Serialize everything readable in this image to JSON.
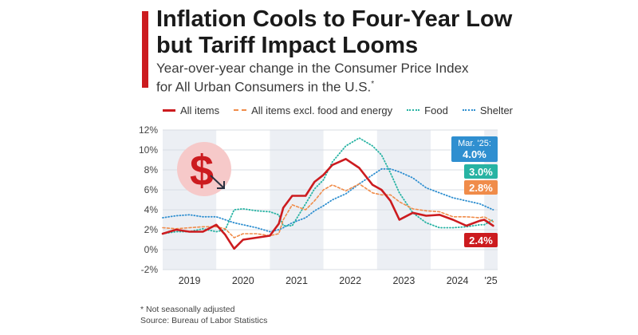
{
  "header": {
    "title_line1": "Inflation Cools to Four-Year Low",
    "title_line2": "but Tariff Impact Looms",
    "subtitle_line1": "Year-over-year change in the Consumer Price Index",
    "subtitle_line2": "for All Urban Consumers in the U.S.",
    "subtitle_mark": "*"
  },
  "footer": {
    "note": "* Not seasonally adjusted",
    "source": "Source: Bureau of Labor Statistics"
  },
  "colors": {
    "accent": "#cc1b1f",
    "all_items": "#cc1b1f",
    "core": "#f08c4a",
    "food": "#27b3a3",
    "shelter": "#2f8fd0",
    "band": "#eceff4",
    "grid": "#d9dde3"
  },
  "icon": "dollar-down-icon",
  "chart_data": {
    "type": "line",
    "title": "Inflation Cools to Four-Year Low but Tariff Impact Looms",
    "subtitle": "Year-over-year change in the Consumer Price Index for All Urban Consumers in the U.S.*",
    "xlabel": "",
    "ylabel": "",
    "ylim": [
      -2,
      12
    ],
    "yticks": [
      "12%",
      "10%",
      "8%",
      "6%",
      "4%",
      "2%",
      "0%",
      "-2%"
    ],
    "ytick_values": [
      12,
      10,
      8,
      6,
      4,
      2,
      0,
      -2
    ],
    "xticks": [
      "2019",
      "2020",
      "2021",
      "2022",
      "2023",
      "2024",
      "'25"
    ],
    "xlim": [
      "2019-01",
      "2025-03"
    ],
    "grid": true,
    "legend_position": "top",
    "x": [
      "2019-01",
      "2019-04",
      "2019-07",
      "2019-10",
      "2020-01",
      "2020-03",
      "2020-05",
      "2020-07",
      "2020-10",
      "2021-01",
      "2021-03",
      "2021-04",
      "2021-06",
      "2021-09",
      "2021-11",
      "2022-01",
      "2022-03",
      "2022-06",
      "2022-09",
      "2022-12",
      "2023-02",
      "2023-04",
      "2023-06",
      "2023-09",
      "2023-12",
      "2024-03",
      "2024-06",
      "2024-09",
      "2024-12",
      "2025-01",
      "2025-03"
    ],
    "series": [
      {
        "name": "All items",
        "key": "all_items",
        "style": "solid",
        "values": [
          1.6,
          2.0,
          1.8,
          1.8,
          2.5,
          1.5,
          0.1,
          1.0,
          1.2,
          1.4,
          2.6,
          4.2,
          5.4,
          5.4,
          6.8,
          7.5,
          8.5,
          9.1,
          8.2,
          6.5,
          6.0,
          4.9,
          3.0,
          3.7,
          3.4,
          3.5,
          3.0,
          2.4,
          2.9,
          3.0,
          2.4
        ],
        "label": "2.4%"
      },
      {
        "name": "All items excl. food and energy",
        "key": "core",
        "style": "dashed",
        "values": [
          2.2,
          2.1,
          2.2,
          2.3,
          2.3,
          2.1,
          1.2,
          1.6,
          1.6,
          1.4,
          1.6,
          3.0,
          4.5,
          4.0,
          4.9,
          6.0,
          6.5,
          5.9,
          6.6,
          5.7,
          5.5,
          5.5,
          4.8,
          4.1,
          3.9,
          3.8,
          3.3,
          3.3,
          3.2,
          3.3,
          2.8
        ],
        "label": "2.8%"
      },
      {
        "name": "Food",
        "key": "food",
        "style": "dotted",
        "values": [
          1.6,
          1.8,
          1.8,
          2.1,
          1.8,
          2.0,
          4.0,
          4.1,
          3.9,
          3.8,
          3.5,
          2.4,
          2.4,
          4.6,
          6.1,
          7.0,
          8.8,
          10.4,
          11.2,
          10.4,
          9.5,
          7.7,
          5.7,
          3.7,
          2.7,
          2.2,
          2.2,
          2.3,
          2.5,
          2.5,
          3.0
        ],
        "label": "3.0%"
      },
      {
        "name": "Shelter",
        "key": "shelter",
        "style": "dotted",
        "values": [
          3.2,
          3.4,
          3.5,
          3.3,
          3.3,
          3.0,
          2.7,
          2.5,
          2.2,
          1.8,
          2.0,
          2.2,
          2.7,
          3.2,
          3.9,
          4.4,
          5.0,
          5.6,
          6.6,
          7.5,
          8.1,
          8.1,
          7.8,
          7.2,
          6.2,
          5.7,
          5.2,
          4.9,
          4.6,
          4.4,
          4.0
        ],
        "label": "4.0%",
        "label_prefix": "Mar. '25:"
      }
    ],
    "legend": [
      "All items",
      "All items excl. food and energy",
      "Food",
      "Shelter"
    ]
  }
}
